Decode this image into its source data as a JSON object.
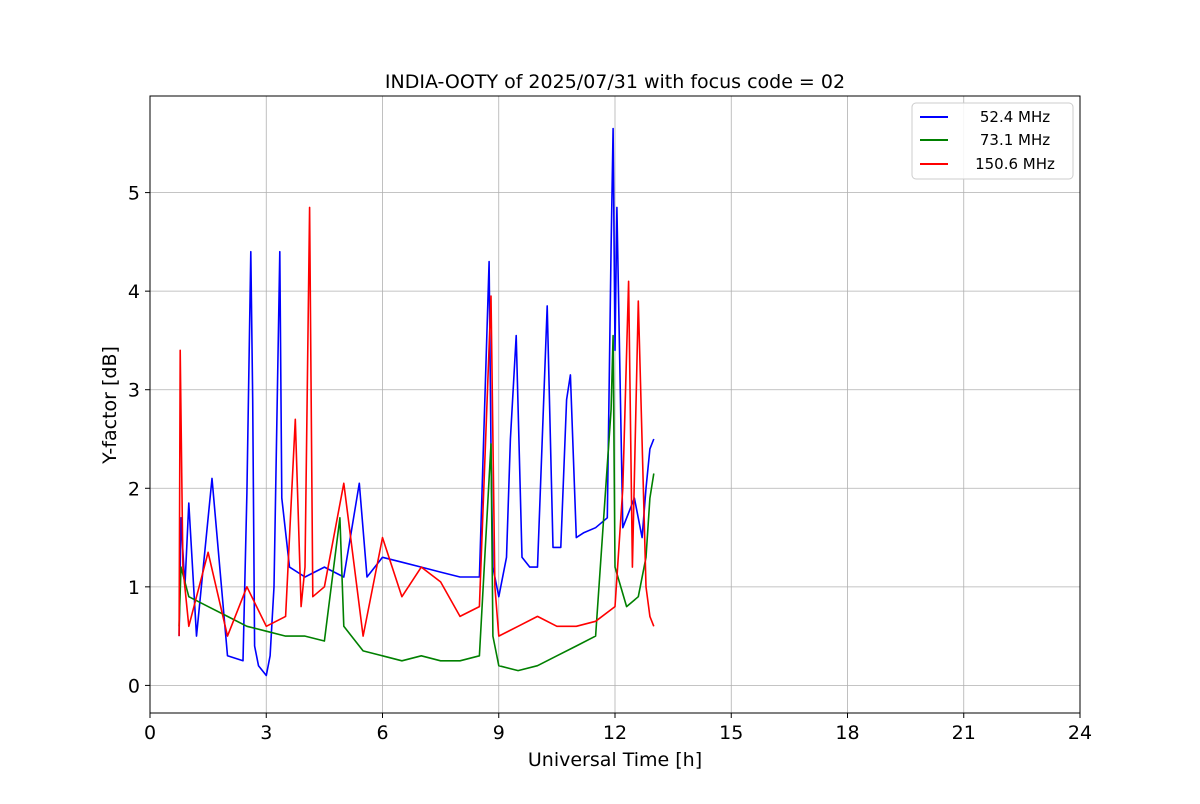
{
  "chart_data": {
    "type": "line",
    "title": "INDIA-OOTY of 2025/07/31 with focus code = 02",
    "xlabel": "Universal Time [h]",
    "ylabel": "Y-factor [dB]",
    "xlim": [
      0,
      24
    ],
    "ylim": [
      -0.28,
      5.98
    ],
    "xticks": [
      0,
      3,
      6,
      9,
      12,
      15,
      18,
      21,
      24
    ],
    "yticks": [
      0,
      1,
      2,
      3,
      4,
      5
    ],
    "grid": true,
    "legend_position": "top-right",
    "series": [
      {
        "name": "52.4 MHz",
        "color": "#0000ff",
        "x": [
          0.75,
          0.8,
          0.9,
          1.0,
          1.2,
          1.6,
          2.0,
          2.4,
          2.5,
          2.6,
          2.65,
          2.7,
          2.8,
          3.0,
          3.1,
          3.2,
          3.35,
          3.4,
          3.6,
          4.0,
          4.5,
          5.0,
          5.4,
          5.6,
          6.0,
          6.5,
          7.0,
          7.5,
          8.0,
          8.5,
          8.75,
          8.8,
          8.85,
          9.0,
          9.2,
          9.3,
          9.45,
          9.6,
          9.8,
          10.0,
          10.25,
          10.4,
          10.6,
          10.75,
          10.85,
          11.0,
          11.2,
          11.5,
          11.8,
          11.9,
          11.95,
          12.0,
          12.05,
          12.2,
          12.5,
          12.7,
          12.8,
          12.9,
          13.0
        ],
        "y": [
          0.5,
          1.7,
          1.0,
          1.85,
          0.5,
          2.1,
          0.3,
          0.25,
          1.95,
          4.4,
          2.9,
          0.4,
          0.2,
          0.1,
          0.3,
          1.0,
          4.4,
          1.9,
          1.2,
          1.1,
          1.2,
          1.1,
          2.05,
          1.1,
          1.3,
          1.25,
          1.2,
          1.15,
          1.1,
          1.1,
          4.3,
          2.4,
          1.2,
          0.9,
          1.3,
          2.5,
          3.55,
          1.3,
          1.2,
          1.2,
          3.85,
          1.4,
          1.4,
          2.9,
          3.15,
          1.5,
          1.55,
          1.6,
          1.7,
          4.45,
          5.65,
          3.4,
          4.85,
          1.6,
          1.9,
          1.5,
          2.0,
          2.4,
          2.5
        ]
      },
      {
        "name": "73.1 MHz",
        "color": "#008000",
        "x": [
          0.75,
          0.8,
          1.0,
          1.5,
          2.0,
          2.5,
          3.0,
          3.5,
          4.0,
          4.5,
          4.9,
          5.0,
          5.5,
          6.0,
          6.5,
          7.0,
          7.5,
          8.0,
          8.5,
          8.8,
          8.85,
          9.0,
          9.5,
          10.0,
          10.5,
          11.0,
          11.5,
          11.9,
          11.95,
          12.0,
          12.3,
          12.6,
          12.8,
          12.9,
          13.0
        ],
        "y": [
          0.6,
          1.2,
          0.9,
          0.8,
          0.7,
          0.6,
          0.55,
          0.5,
          0.5,
          0.45,
          1.7,
          0.6,
          0.35,
          0.3,
          0.25,
          0.3,
          0.25,
          0.25,
          0.3,
          2.45,
          0.5,
          0.2,
          0.15,
          0.2,
          0.3,
          0.4,
          0.5,
          2.8,
          3.55,
          1.2,
          0.8,
          0.9,
          1.3,
          1.9,
          2.15
        ]
      },
      {
        "name": "150.6 MHz",
        "color": "#ff0000",
        "x": [
          0.75,
          0.78,
          0.85,
          1.0,
          1.5,
          2.0,
          2.5,
          3.0,
          3.5,
          3.75,
          3.9,
          4.0,
          4.12,
          4.2,
          4.5,
          5.0,
          5.5,
          6.0,
          6.5,
          7.0,
          7.5,
          8.0,
          8.5,
          8.8,
          8.9,
          9.0,
          9.5,
          10.0,
          10.5,
          11.0,
          11.5,
          12.0,
          12.2,
          12.35,
          12.45,
          12.6,
          12.8,
          12.9,
          13.0
        ],
        "y": [
          0.5,
          3.4,
          1.2,
          0.6,
          1.35,
          0.5,
          1.0,
          0.6,
          0.7,
          2.7,
          0.8,
          1.2,
          4.85,
          0.9,
          1.0,
          2.05,
          0.5,
          1.5,
          0.9,
          1.2,
          1.05,
          0.7,
          0.8,
          3.95,
          1.0,
          0.5,
          0.6,
          0.7,
          0.6,
          0.6,
          0.65,
          0.8,
          2.0,
          4.1,
          1.2,
          3.9,
          1.0,
          0.7,
          0.6
        ]
      }
    ]
  }
}
